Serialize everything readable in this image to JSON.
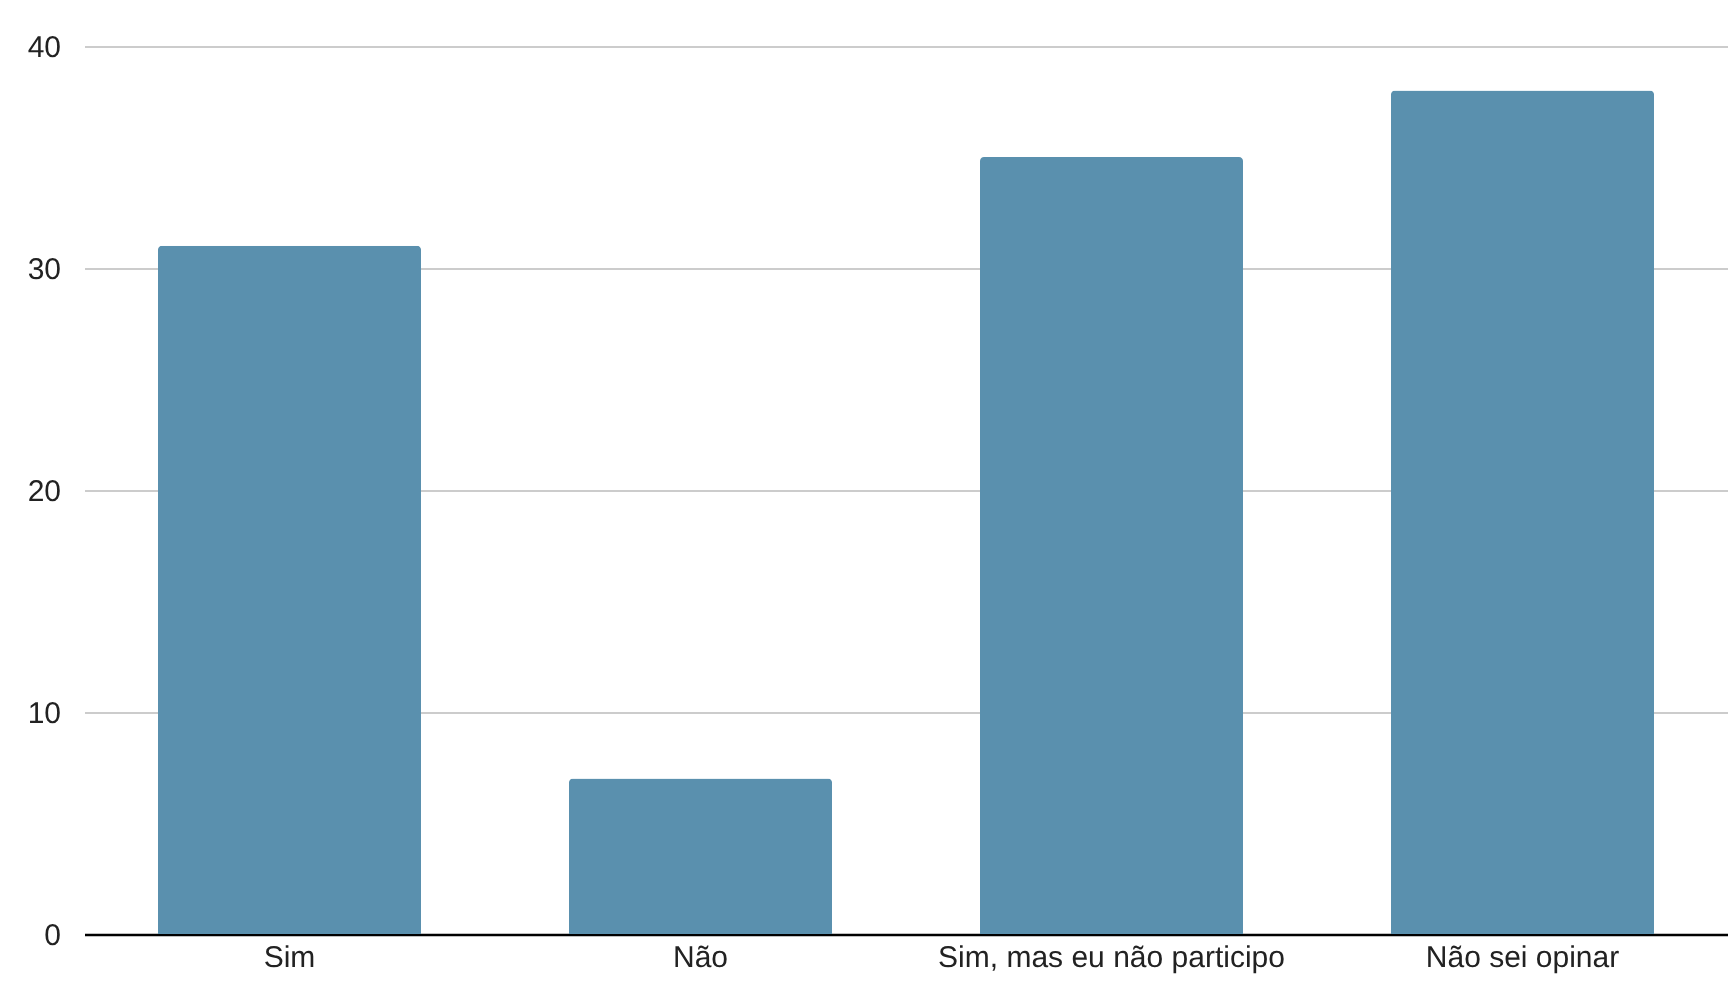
{
  "chart_data": {
    "type": "bar",
    "categories": [
      "Sim",
      "Não",
      "Sim, mas eu não participo",
      "Não sei opinar"
    ],
    "values": [
      31,
      7,
      35,
      38
    ],
    "color": "#5a90ae",
    "ylim": [
      0,
      40
    ],
    "yticks": [
      0,
      10,
      20,
      30,
      40
    ],
    "grid": "y"
  }
}
